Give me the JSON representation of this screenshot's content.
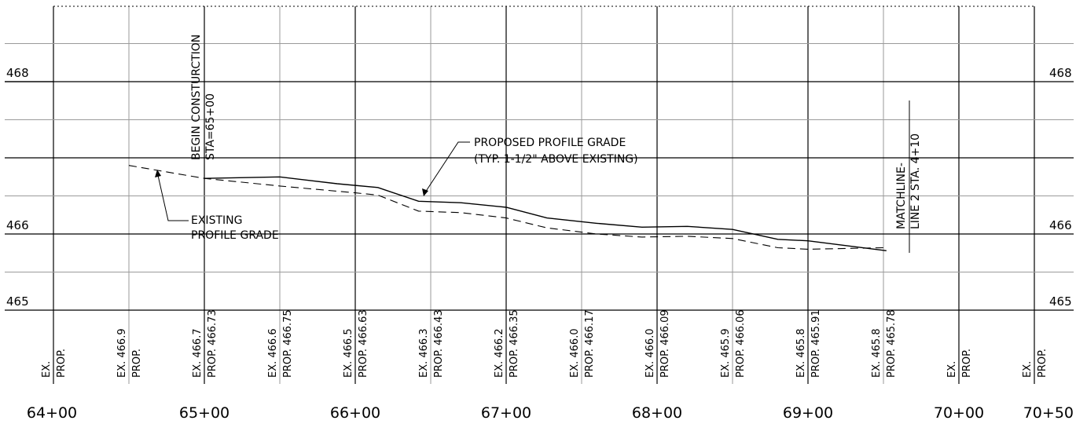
{
  "elevation_labels": [
    {
      "value": 468,
      "text": "468"
    },
    {
      "value": 466,
      "text": "466"
    },
    {
      "value": 465,
      "text": "465"
    }
  ],
  "station_labels": [
    {
      "station": 6400,
      "text": "64+00"
    },
    {
      "station": 6500,
      "text": "65+00"
    },
    {
      "station": 6600,
      "text": "66+00"
    },
    {
      "station": 6700,
      "text": "67+00"
    },
    {
      "station": 6800,
      "text": "68+00"
    },
    {
      "station": 6900,
      "text": "69+00"
    },
    {
      "station": 7000,
      "text": "70+00"
    },
    {
      "station": 7050,
      "text": "70+50"
    }
  ],
  "data_columns": [
    {
      "station": 6400,
      "ex": "EX.",
      "prop": "PROP."
    },
    {
      "station": 6450,
      "ex": "EX. 466.9",
      "prop": "PROP."
    },
    {
      "station": 6500,
      "ex": "EX. 466.7",
      "prop": "PROP. 466.73"
    },
    {
      "station": 6550,
      "ex": "EX. 466.6",
      "prop": "PROP. 466.75"
    },
    {
      "station": 6600,
      "ex": "EX. 466.5",
      "prop": "PROP. 466.63"
    },
    {
      "station": 6650,
      "ex": "EX. 466.3",
      "prop": "PROP. 466.43"
    },
    {
      "station": 6700,
      "ex": "EX. 466.2",
      "prop": "PROP. 466.35"
    },
    {
      "station": 6750,
      "ex": "EX. 466.0",
      "prop": "PROP. 466.17"
    },
    {
      "station": 6800,
      "ex": "EX. 466.0",
      "prop": "PROP. 466.09"
    },
    {
      "station": 6850,
      "ex": "EX. 465.9",
      "prop": "PROP. 466.06"
    },
    {
      "station": 6900,
      "ex": "EX. 465.8",
      "prop": "PROP. 465.91"
    },
    {
      "station": 6950,
      "ex": "EX. 465.8",
      "prop": "PROP. 465.78"
    },
    {
      "station": 7000,
      "ex": "EX.",
      "prop": "PROP."
    },
    {
      "station": 7050,
      "ex": "EX.",
      "prop": "PROP."
    }
  ],
  "proposed_profile": [
    [
      6500,
      466.73
    ],
    [
      6550,
      466.75
    ],
    [
      6588,
      466.66
    ],
    [
      6615,
      466.61
    ],
    [
      6642,
      466.43
    ],
    [
      6670,
      466.41
    ],
    [
      6700,
      466.35
    ],
    [
      6727,
      466.21
    ],
    [
      6760,
      466.14
    ],
    [
      6790,
      466.09
    ],
    [
      6820,
      466.1
    ],
    [
      6850,
      466.06
    ],
    [
      6880,
      465.93
    ],
    [
      6900,
      465.91
    ],
    [
      6952,
      465.78
    ]
  ],
  "existing_profile": [
    [
      6450,
      466.9
    ],
    [
      6500,
      466.73
    ],
    [
      6550,
      466.63
    ],
    [
      6600,
      466.54
    ],
    [
      6615,
      466.51
    ],
    [
      6642,
      466.3
    ],
    [
      6670,
      466.28
    ],
    [
      6700,
      466.21
    ],
    [
      6727,
      466.08
    ],
    [
      6760,
      466.0
    ],
    [
      6790,
      465.96
    ],
    [
      6820,
      465.97
    ],
    [
      6850,
      465.94
    ],
    [
      6880,
      465.82
    ],
    [
      6900,
      465.8
    ],
    [
      6950,
      465.82
    ],
    [
      6952,
      465.78
    ]
  ],
  "annotations": {
    "begin_construction": {
      "line1": "BEGIN CONSTURCTION",
      "line2": "STA=65+00"
    },
    "proposed_grade": {
      "line1": "PROPOSED PROFILE GRADE",
      "line2": "(TYP. 1-1/2\" ABOVE EXISTING)"
    },
    "existing_grade": {
      "line1": "EXISTING",
      "line2": "PROFILE GRADE"
    },
    "matchline": {
      "line1": "MATCHLINE-",
      "line2": "LINE 2 STA. 4+10"
    }
  }
}
